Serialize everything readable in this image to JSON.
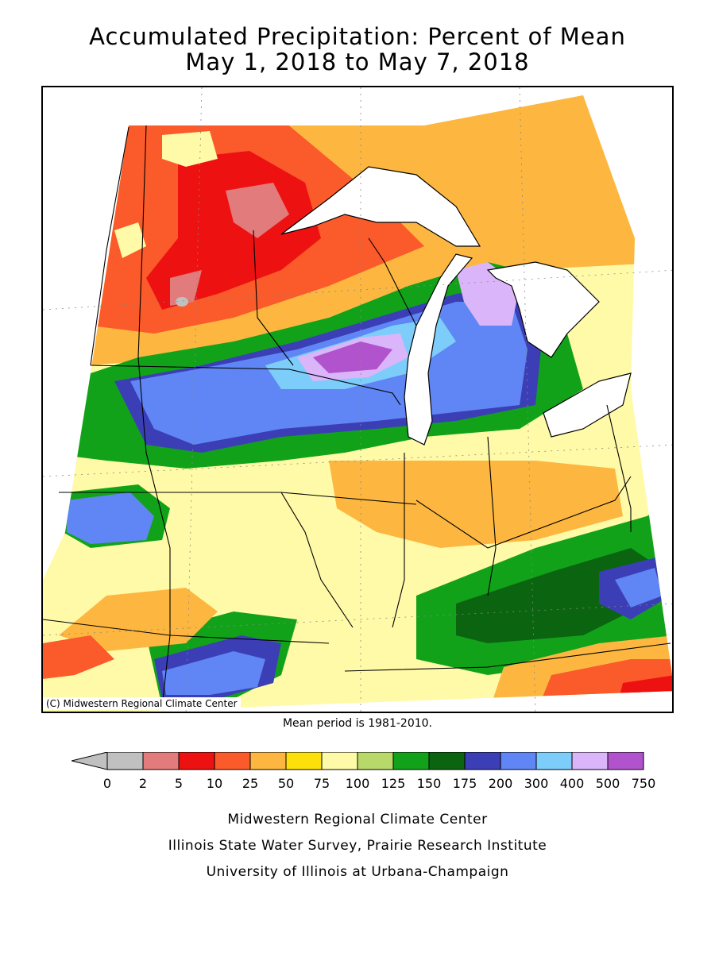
{
  "title_line1": "Accumulated Precipitation: Percent of Mean",
  "title_line2": "May 1, 2018 to May 7, 2018",
  "copyright": "(C) Midwestern Regional Climate Center",
  "mean_period": "Mean period is 1981-2010.",
  "legend": {
    "bins": [
      {
        "label": "0",
        "color": "#c0c0c0"
      },
      {
        "label": "2",
        "color": "#e27b7b"
      },
      {
        "label": "5",
        "color": "#ee1111"
      },
      {
        "label": "10",
        "color": "#fb5a2a"
      },
      {
        "label": "25",
        "color": "#fdb740"
      },
      {
        "label": "50",
        "color": "#fde00a"
      },
      {
        "label": "75",
        "color": "#fffaa8"
      },
      {
        "label": "100",
        "color": "#b8d86a"
      },
      {
        "label": "125",
        "color": "#12a21a"
      },
      {
        "label": "150",
        "color": "#0b6410"
      },
      {
        "label": "175",
        "color": "#3c3eb6"
      },
      {
        "label": "200",
        "color": "#5f86f4"
      },
      {
        "label": "300",
        "color": "#7dcdfb"
      },
      {
        "label": "400",
        "color": "#dbb5f9"
      },
      {
        "label": "500",
        "color": "#b053cc"
      },
      {
        "label": "750",
        "color": ""
      }
    ]
  },
  "footer": {
    "line1": "Midwestern Regional Climate Center",
    "line2": "Illinois State Water Survey, Prairie Research Institute",
    "line3": "University of Illinois at Urbana-Champaign"
  }
}
